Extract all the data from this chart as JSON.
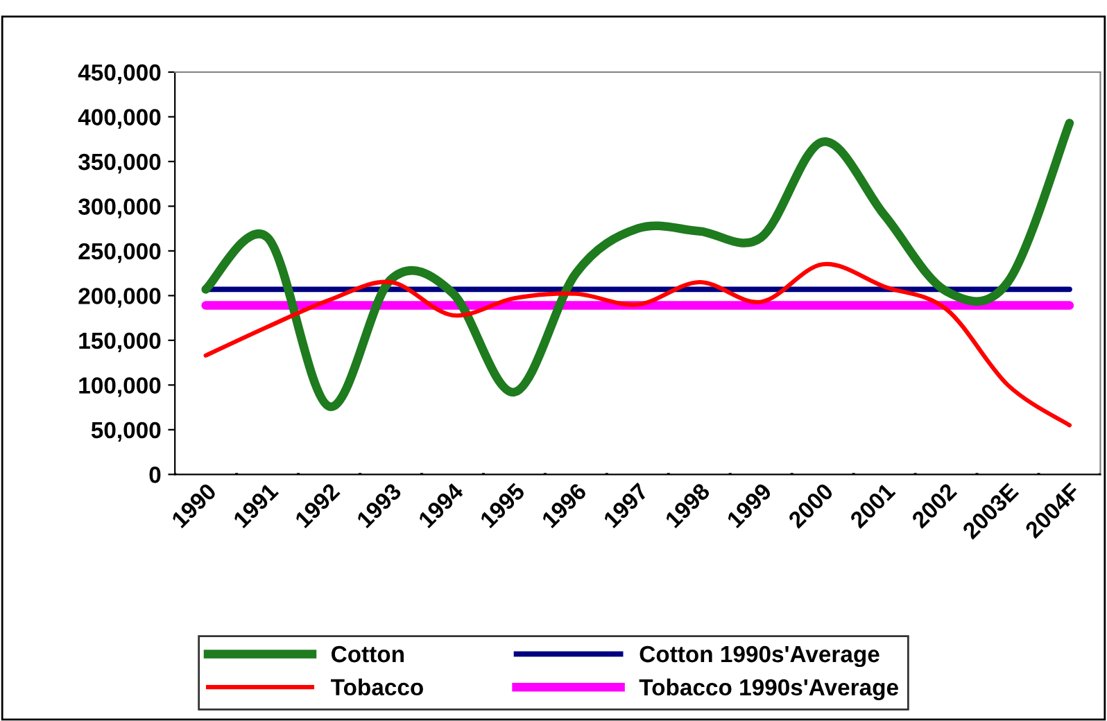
{
  "chart_data": {
    "type": "line",
    "categories": [
      "1990",
      "1991",
      "1992",
      "1993",
      "1994",
      "1995",
      "1996",
      "1997",
      "1998",
      "1999",
      "2000",
      "2001",
      "2002",
      "2003E",
      "2004F"
    ],
    "series": [
      {
        "name": "Cotton",
        "color": "#1e7b1e",
        "values": [
          207000,
          265000,
          76000,
          218000,
          203000,
          92000,
          225000,
          275000,
          272000,
          265000,
          372000,
          290000,
          205000,
          215000,
          393000
        ]
      },
      {
        "name": "Tobacco",
        "color": "#ff0000",
        "values": [
          133000,
          165000,
          195000,
          215000,
          178000,
          197000,
          202000,
          190000,
          215000,
          193000,
          235000,
          210000,
          185000,
          100000,
          55000
        ]
      },
      {
        "name": "Cotton 1990s'Average",
        "color": "#000080",
        "values": [
          207000,
          207000,
          207000,
          207000,
          207000,
          207000,
          207000,
          207000,
          207000,
          207000,
          207000,
          207000,
          207000,
          207000,
          207000
        ]
      },
      {
        "name": "Tobacco 1990s'Average",
        "color": "#ff00ff",
        "values": [
          189000,
          189000,
          189000,
          189000,
          189000,
          189000,
          189000,
          189000,
          189000,
          189000,
          189000,
          189000,
          189000,
          189000,
          189000
        ]
      }
    ],
    "ylim": [
      0,
      450000
    ],
    "yticks": [
      {
        "value": 0,
        "label": "0"
      },
      {
        "value": 50000,
        "label": "50,000"
      },
      {
        "value": 100000,
        "label": "100,000"
      },
      {
        "value": 150000,
        "label": "150,000"
      },
      {
        "value": 200000,
        "label": "200,000"
      },
      {
        "value": 250000,
        "label": "250,000"
      },
      {
        "value": 300000,
        "label": "300,000"
      },
      {
        "value": 350000,
        "label": "350,000"
      },
      {
        "value": 400000,
        "label": "400,000"
      },
      {
        "value": 450000,
        "label": "450,000"
      }
    ],
    "grid": false,
    "legend": "bottom",
    "marker": "none",
    "line_style": "solid"
  }
}
